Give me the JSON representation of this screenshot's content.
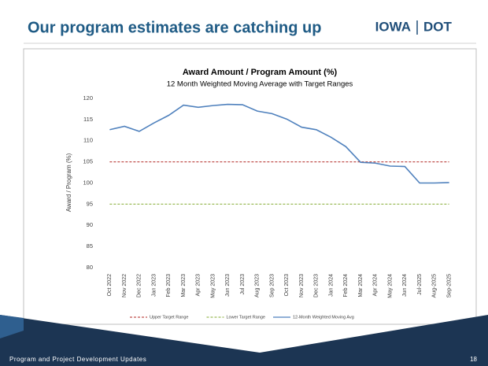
{
  "slide": {
    "title": "Our program estimates are catching up",
    "logo_left": "IOWA",
    "logo_right": "DOT",
    "footer": "Program and Project Development Updates",
    "page_number": 18
  },
  "chart_data": {
    "type": "line",
    "title": "Award Amount / Program Amount (%)",
    "subtitle": "12 Month Weighted Moving Average with Target Ranges",
    "y_label": "Award / Program (%)",
    "categories": [
      "Oct 2022",
      "Nov 2022",
      "Dec 2022",
      "Jan 2023",
      "Feb 2023",
      "Mar 2023",
      "Apr 2023",
      "May 2023",
      "Jun 2023",
      "Jul 2023",
      "Aug 2023",
      "Sep 2023",
      "Oct 2023",
      "Nov 2023",
      "Dec 2023",
      "Jan 2024",
      "Feb 2024",
      "Mar 2024",
      "Apr 2024",
      "May 2024",
      "Jun 2024",
      "Jul-2025",
      "Aug-2025",
      "Sep-2025"
    ],
    "series": [
      {
        "name": "Upper Target Range",
        "color": "#c0504d",
        "dashed": true,
        "values": [
          105,
          105,
          105,
          105,
          105,
          105,
          105,
          105,
          105,
          105,
          105,
          105,
          105,
          105,
          105,
          105,
          105,
          105,
          105,
          105,
          105,
          105,
          105,
          105
        ]
      },
      {
        "name": "Lower Target Range",
        "color": "#9bbb59",
        "dashed": true,
        "values": [
          95,
          95,
          95,
          95,
          95,
          95,
          95,
          95,
          95,
          95,
          95,
          95,
          95,
          95,
          95,
          95,
          95,
          95,
          95,
          95,
          95,
          95,
          95,
          95
        ]
      },
      {
        "name": "12-Month Weighted Moving Avg",
        "color": "#4f81bd",
        "dashed": false,
        "values": [
          112.6,
          113.4,
          112.2,
          114.2,
          116,
          118.4,
          117.9,
          118.3,
          118.6,
          118.5,
          117,
          116.4,
          115.1,
          113.2,
          112.6,
          110.8,
          108.6,
          104.9,
          104.7,
          104,
          103.9,
          100,
          100,
          100.1
        ]
      }
    ],
    "ylim": [
      80,
      120
    ],
    "yticks": [
      80,
      85,
      90,
      95,
      100,
      105,
      110,
      115,
      120
    ],
    "grid": false,
    "legend": "bottom"
  }
}
